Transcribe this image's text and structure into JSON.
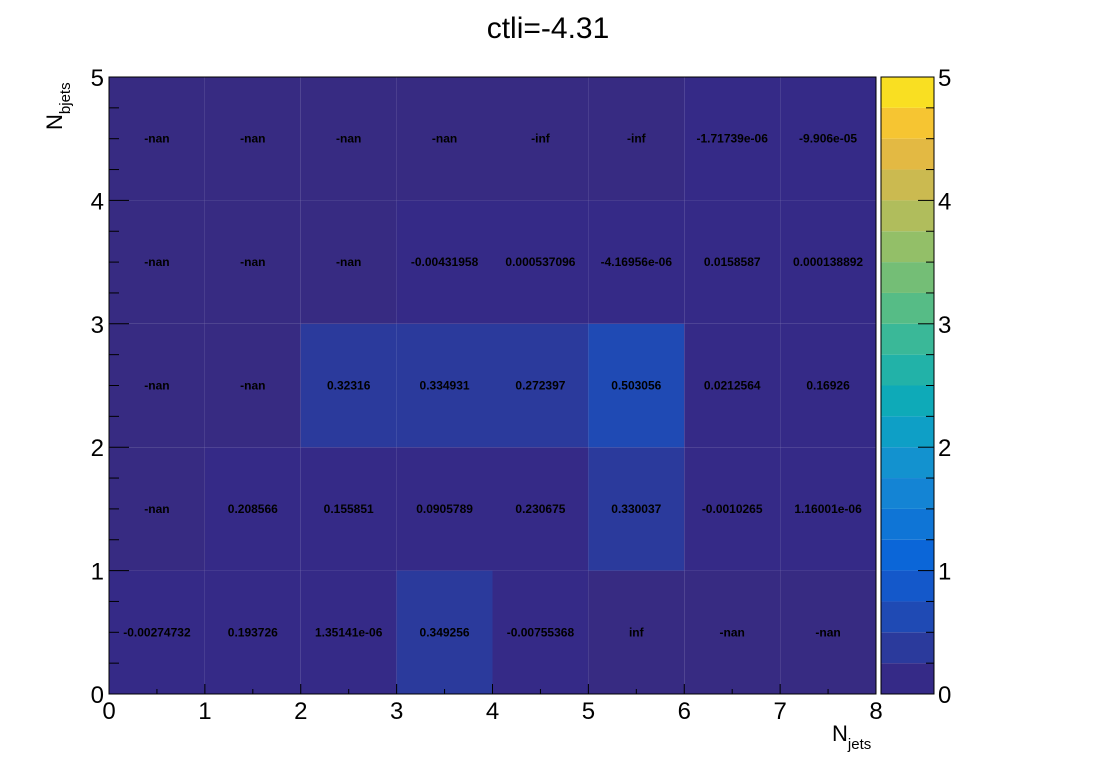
{
  "chart_data": {
    "type": "heatmap",
    "title": "ctli=-4.31",
    "xlabel": {
      "main": "N",
      "sub": "jets"
    },
    "ylabel": {
      "main": "N",
      "sub": "bjets"
    },
    "xlim": [
      0,
      8
    ],
    "ylim": [
      0,
      5
    ],
    "zlim": [
      0,
      5
    ],
    "x_ticks": [
      "0",
      "1",
      "2",
      "3",
      "4",
      "5",
      "6",
      "7",
      "8"
    ],
    "y_ticks": [
      "0",
      "1",
      "2",
      "3",
      "4",
      "5"
    ],
    "z_ticks": [
      "0",
      "1",
      "2",
      "3",
      "4",
      "5"
    ],
    "palette": "kParula",
    "cells": [
      [
        {
          "label": "-0.00274732",
          "value": -0.00274732
        },
        {
          "label": "0.193726",
          "value": 0.193726
        },
        {
          "label": "1.35141e-06",
          "value": 1.35141e-06
        },
        {
          "label": "0.349256",
          "value": 0.349256
        },
        {
          "label": "-0.00755368",
          "value": -0.00755368
        },
        {
          "label": "inf",
          "value": null,
          "fill": "empty"
        },
        {
          "label": "-nan",
          "value": null,
          "fill": "empty"
        },
        {
          "label": "-nan",
          "value": null,
          "fill": "empty"
        }
      ],
      [
        {
          "label": "-nan",
          "value": null,
          "fill": "empty"
        },
        {
          "label": "0.208566",
          "value": 0.208566
        },
        {
          "label": "0.155851",
          "value": 0.155851
        },
        {
          "label": "0.0905789",
          "value": 0.0905789
        },
        {
          "label": "0.230675",
          "value": 0.230675
        },
        {
          "label": "0.330037",
          "value": 0.330037
        },
        {
          "label": "-0.0010265",
          "value": -0.0010265
        },
        {
          "label": "1.16001e-06",
          "value": 1.16001e-06
        }
      ],
      [
        {
          "label": "-nan",
          "value": null,
          "fill": "empty"
        },
        {
          "label": "-nan",
          "value": null,
          "fill": "empty"
        },
        {
          "label": "0.32316",
          "value": 0.32316
        },
        {
          "label": "0.334931",
          "value": 0.334931
        },
        {
          "label": "0.272397",
          "value": 0.272397
        },
        {
          "label": "0.503056",
          "value": 0.503056
        },
        {
          "label": "0.0212564",
          "value": 0.0212564
        },
        {
          "label": "0.16926",
          "value": 0.16926
        }
      ],
      [
        {
          "label": "-nan",
          "value": null,
          "fill": "empty"
        },
        {
          "label": "-nan",
          "value": null,
          "fill": "empty"
        },
        {
          "label": "-nan",
          "value": null,
          "fill": "empty"
        },
        {
          "label": "-0.00431958",
          "value": -0.00431958
        },
        {
          "label": "0.000537096",
          "value": 0.000537096
        },
        {
          "label": "-4.16956e-06",
          "value": -4.16956e-06
        },
        {
          "label": "0.0158587",
          "value": 0.0158587
        },
        {
          "label": "0.000138892",
          "value": 0.000138892
        }
      ],
      [
        {
          "label": "-nan",
          "value": null,
          "fill": "empty"
        },
        {
          "label": "-nan",
          "value": null,
          "fill": "empty"
        },
        {
          "label": "-nan",
          "value": null,
          "fill": "empty"
        },
        {
          "label": "-nan",
          "value": null,
          "fill": "empty"
        },
        {
          "label": "-inf",
          "value": null,
          "fill": "empty"
        },
        {
          "label": "-inf",
          "value": null,
          "fill": "empty"
        },
        {
          "label": "-1.71739e-06",
          "value": -1.71739e-06
        },
        {
          "label": "-9.906e-05",
          "value": -9.906e-05
        }
      ]
    ]
  }
}
